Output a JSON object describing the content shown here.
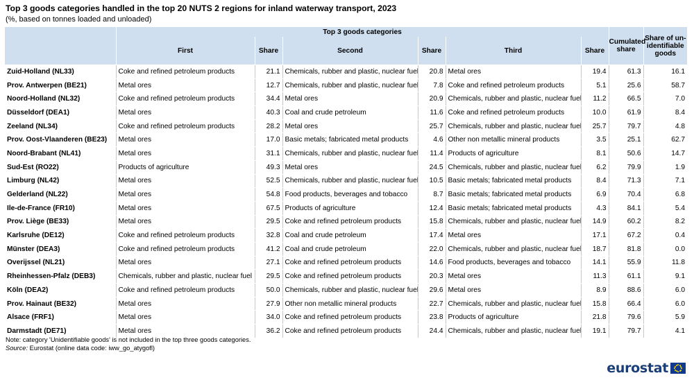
{
  "title": "Top 3 goods categories handled in the top 20 NUTS 2 regions for inland waterway transport, 2023",
  "subtitle": "(%, based on tonnes loaded and unloaded)",
  "header": {
    "group": "Top 3 goods categories",
    "first": "First",
    "share": "Share",
    "second": "Second",
    "third": "Third",
    "cumulated_l1": "Cumulated",
    "cumulated_l2": "share",
    "unid_l1": "Share of un-",
    "unid_l2": "identifiable",
    "unid_l3": "goods"
  },
  "rows": [
    {
      "region": "Zuid-Holland (NL33)",
      "first": "Coke and refined petroleum products",
      "s1": "21.1",
      "second": "Chemicals, rubber and plastic, nuclear fuel",
      "s2": "20.8",
      "third": "Metal ores",
      "s3": "19.4",
      "cum": "61.3",
      "unid": "16.1"
    },
    {
      "region": "Prov. Antwerpen (BE21)",
      "first": "Metal ores",
      "s1": "12.7",
      "second": "Chemicals, rubber and plastic, nuclear fuel",
      "s2": "7.8",
      "third": "Coke and refined petroleum products",
      "s3": "5.1",
      "cum": "25.6",
      "unid": "58.7"
    },
    {
      "region": "Noord-Holland (NL32)",
      "first": "Coke and refined petroleum products",
      "s1": "34.4",
      "second": "Metal ores",
      "s2": "20.9",
      "third": "Chemicals, rubber and plastic, nuclear fuel",
      "s3": "11.2",
      "cum": "66.5",
      "unid": "7.0"
    },
    {
      "region": "Düsseldorf (DEA1)",
      "first": "Metal ores",
      "s1": "40.3",
      "second": "Coal and crude petroleum",
      "s2": "11.6",
      "third": "Coke and refined petroleum products",
      "s3": "10.0",
      "cum": "61.9",
      "unid": "8.4"
    },
    {
      "region": "Zeeland (NL34)",
      "first": "Coke and refined petroleum products",
      "s1": "28.2",
      "second": "Metal ores",
      "s2": "25.7",
      "third": "Chemicals, rubber and plastic, nuclear fuel",
      "s3": "25.7",
      "cum": "79.7",
      "unid": "4.8"
    },
    {
      "region": "Prov. Oost-Vlaanderen (BE23)",
      "first": "Metal ores",
      "s1": "17.0",
      "second": "Basic metals; fabricated metal products",
      "s2": "4.6",
      "third": "Other non metallic mineral products",
      "s3": "3.5",
      "cum": "25.1",
      "unid": "62.7"
    },
    {
      "region": "Noord-Brabant (NL41)",
      "first": "Metal ores",
      "s1": "31.1",
      "second": "Chemicals, rubber and plastic, nuclear fuel",
      "s2": "11.4",
      "third": "Products of agriculture",
      "s3": "8.1",
      "cum": "50.6",
      "unid": "14.7"
    },
    {
      "region": "Sud-Est (RO22)",
      "first": "Products of agriculture",
      "s1": "49.3",
      "second": "Metal ores",
      "s2": "24.5",
      "third": "Chemicals, rubber and plastic, nuclear fuel",
      "s3": "6.2",
      "cum": "79.9",
      "unid": "1.9"
    },
    {
      "region": "Limburg (NL42)",
      "first": "Metal ores",
      "s1": "52.5",
      "second": "Chemicals, rubber and plastic, nuclear fuel",
      "s2": "10.5",
      "third": "Basic metals; fabricated metal products",
      "s3": "8.4",
      "cum": "71.3",
      "unid": "7.1"
    },
    {
      "region": "Gelderland (NL22)",
      "first": "Metal ores",
      "s1": "54.8",
      "second": "Food products, beverages and tobacco",
      "s2": "8.7",
      "third": "Basic metals; fabricated metal products",
      "s3": "6.9",
      "cum": "70.4",
      "unid": "6.8"
    },
    {
      "region": "Ile-de-France (FR10)",
      "first": "Metal ores",
      "s1": "67.5",
      "second": "Products of agriculture",
      "s2": "12.4",
      "third": "Basic metals; fabricated metal products",
      "s3": "4.3",
      "cum": "84.1",
      "unid": "5.4"
    },
    {
      "region": "Prov. Liège (BE33)",
      "first": "Metal ores",
      "s1": "29.5",
      "second": "Coke and refined petroleum products",
      "s2": "15.8",
      "third": "Chemicals, rubber and plastic, nuclear fuel",
      "s3": "14.9",
      "cum": "60.2",
      "unid": "8.2"
    },
    {
      "region": "Karlsruhe (DE12)",
      "first": "Coke and refined petroleum products",
      "s1": "32.8",
      "second": "Coal and crude petroleum",
      "s2": "17.4",
      "third": "Metal ores",
      "s3": "17.1",
      "cum": "67.2",
      "unid": "0.4"
    },
    {
      "region": "Münster (DEA3)",
      "first": "Coke and refined petroleum products",
      "s1": "41.2",
      "second": "Coal and crude petroleum",
      "s2": "22.0",
      "third": "Chemicals, rubber and plastic, nuclear fuel",
      "s3": "18.7",
      "cum": "81.8",
      "unid": "0.0"
    },
    {
      "region": "Overijssel (NL21)",
      "first": "Metal ores",
      "s1": "27.1",
      "second": "Coke and refined petroleum products",
      "s2": "14.6",
      "third": "Food products, beverages and tobacco",
      "s3": "14.1",
      "cum": "55.9",
      "unid": "11.8"
    },
    {
      "region": "Rheinhessen-Pfalz (DEB3)",
      "first": "Chemicals, rubber and plastic, nuclear fuel",
      "s1": "29.5",
      "second": "Coke and refined petroleum products",
      "s2": "20.3",
      "third": "Metal ores",
      "s3": "11.3",
      "cum": "61.1",
      "unid": "9.1"
    },
    {
      "region": "Köln (DEA2)",
      "first": "Coke and refined petroleum products",
      "s1": "50.0",
      "second": "Chemicals, rubber and plastic, nuclear fuel",
      "s2": "29.6",
      "third": "Metal ores",
      "s3": "8.9",
      "cum": "88.6",
      "unid": "6.0"
    },
    {
      "region": "Prov. Hainaut (BE32)",
      "first": "Metal ores",
      "s1": "27.9",
      "second": "Other non metallic mineral products",
      "s2": "22.7",
      "third": "Chemicals, rubber and plastic, nuclear fuel",
      "s3": "15.8",
      "cum": "66.4",
      "unid": "6.0"
    },
    {
      "region": "Alsace (FRF1)",
      "first": "Metal ores",
      "s1": "34.0",
      "second": "Coke and refined petroleum products",
      "s2": "23.8",
      "third": "Products of agriculture",
      "s3": "21.8",
      "cum": "79.6",
      "unid": "5.9"
    },
    {
      "region": "Darmstadt (DE71)",
      "first": "Metal ores",
      "s1": "36.2",
      "second": "Coke and refined petroleum products",
      "s2": "24.4",
      "third": "Chemicals, rubber and plastic, nuclear fuel",
      "s3": "19.1",
      "cum": "79.7",
      "unid": "4.1"
    }
  ],
  "note": "Note: category 'Unidentifiable goods' is not included in the top three goods categories.",
  "source_label": "Source:",
  "source_text": " Eurostat (online data code: iww_go_atygofl)",
  "logo_text": "eurostat",
  "colors": {
    "header_bg": "#cfdfef",
    "logo_blue": "#1b3e79",
    "flag_blue": "#123a8c",
    "flag_star": "#ffdd00"
  }
}
